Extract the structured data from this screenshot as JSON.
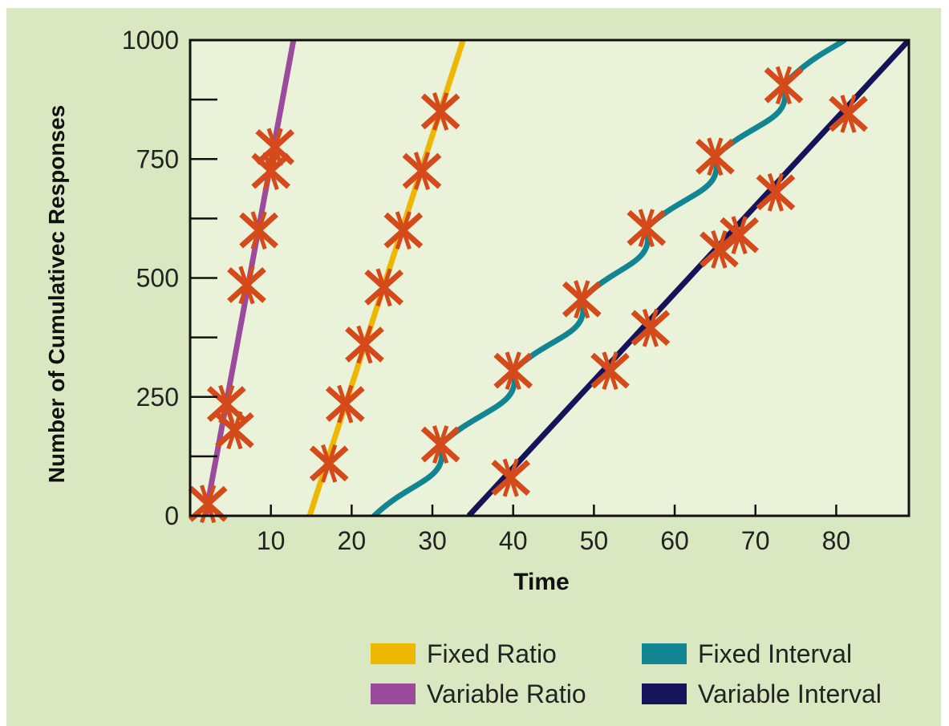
{
  "colors": {
    "panel": "#d9e8c1",
    "plot_bg": "#eaf2da",
    "axis": "#111111",
    "marker": "#d54a1a",
    "fixed_ratio": "#eeb700",
    "variable_ratio": "#9b4b9c",
    "fixed_interval": "#118592",
    "variable_interval": "#15145a"
  },
  "chart_data": {
    "type": "line",
    "title": "",
    "xlabel": "Time",
    "ylabel": "Number of Cumulativec Responses",
    "xlim": [
      0,
      89
    ],
    "ylim": [
      0,
      1000
    ],
    "x_ticks": [
      10,
      20,
      30,
      40,
      50,
      60,
      70,
      80
    ],
    "x_tick_labels": [
      "10",
      "20",
      "30",
      "40",
      "50",
      "60",
      "70",
      "80"
    ],
    "y_ticks": [
      0,
      125,
      250,
      375,
      500,
      625,
      750,
      875,
      1000
    ],
    "y_tick_labels": [
      "0",
      "",
      "250",
      "",
      "500",
      "",
      "750",
      "",
      "1000"
    ],
    "legend_position": "bottom-right",
    "series": [
      {
        "name": "Variable Ratio",
        "color_key": "variable_ratio",
        "line": [
          [
            1.9,
            0
          ],
          [
            12.8,
            1000
          ]
        ],
        "reinforcements": [
          [
            2.2,
            25
          ],
          [
            4.5,
            235
          ],
          [
            5.5,
            180
          ],
          [
            7,
            485
          ],
          [
            8.5,
            600
          ],
          [
            10,
            725
          ],
          [
            10.5,
            775
          ]
        ]
      },
      {
        "name": "Fixed Ratio",
        "color_key": "fixed_ratio",
        "line": [
          [
            14.8,
            0
          ],
          [
            33.8,
            1000
          ]
        ],
        "reinforcements": [
          [
            17.2,
            110
          ],
          [
            19.2,
            235
          ],
          [
            21.6,
            360
          ],
          [
            24,
            480
          ],
          [
            26.4,
            600
          ],
          [
            28.7,
            725
          ],
          [
            31,
            850
          ]
        ]
      },
      {
        "name": "Fixed Interval",
        "color_key": "fixed_interval",
        "shape": "scallop",
        "start": [
          22.8,
          0
        ],
        "segments": [
          [
            31,
            150
          ],
          [
            40,
            305
          ],
          [
            48.5,
            455
          ],
          [
            56.5,
            605
          ],
          [
            65,
            755
          ],
          [
            73.5,
            905
          ]
        ],
        "end": [
          81,
          1000
        ],
        "reinforcements": [
          [
            31,
            150
          ],
          [
            40,
            305
          ],
          [
            48.5,
            455
          ],
          [
            56.5,
            605
          ],
          [
            65,
            755
          ],
          [
            73.5,
            905
          ]
        ]
      },
      {
        "name": "Variable Interval",
        "color_key": "variable_interval",
        "line": [
          [
            34.5,
            0
          ],
          [
            89,
            1000
          ]
        ],
        "reinforcements": [
          [
            39.7,
            80
          ],
          [
            52,
            305
          ],
          [
            57,
            395
          ],
          [
            65.5,
            560
          ],
          [
            68,
            590
          ],
          [
            72.5,
            680
          ],
          [
            81.5,
            845
          ]
        ]
      }
    ]
  },
  "legend": [
    {
      "label": "Fixed Ratio",
      "color_key": "fixed_ratio"
    },
    {
      "label": "Fixed Interval",
      "color_key": "fixed_interval"
    },
    {
      "label": "Variable Ratio",
      "color_key": "variable_ratio"
    },
    {
      "label": "Variable Interval",
      "color_key": "variable_interval"
    }
  ]
}
